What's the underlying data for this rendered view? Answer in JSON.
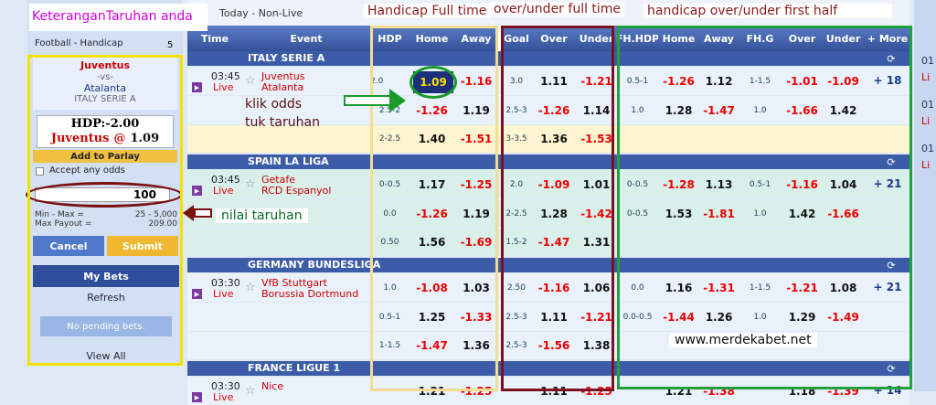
{
  "top_bar": {
    "title": "Today - Non-Live"
  },
  "annotations": {
    "betslip": "KeteranganTaruhan anda",
    "hdp_full": "Handicap Full time",
    "ou_full": "over/under full time",
    "fh": "handicap over/under first half",
    "click_1": "klik odds",
    "click_2": "tuk taruhan",
    "stake": "nilai taruhan",
    "site": "www.merdekabet.net"
  },
  "betslip": {
    "tab": "Football - Handicap",
    "count": "5",
    "home": "Juventus",
    "vs": "-vs-",
    "away": "Atalanta",
    "league": "ITALY SERIE A",
    "hdp": "HDP:-2.00",
    "pick": "Juventus",
    "at": "@",
    "odds": "1.09",
    "add_parlay": "Add to Parlay",
    "accept": "Accept any odds",
    "stake": "100",
    "min_max_label": "Min - Max =",
    "min_max": "25 - 5,000",
    "payout_label": "Max Payout =",
    "payout": "209.00",
    "cancel": "Cancel",
    "submit": "Submit",
    "my_bets": "My Bets",
    "refresh": "Refresh",
    "pending": "No pending bets.",
    "view_all": "View All"
  },
  "table": {
    "columns": [
      "Time",
      "Event",
      "HDP",
      "Home",
      "Away",
      "Goal",
      "Over",
      "Under",
      "FH.HDP",
      "Home",
      "Away",
      "FH.G",
      "Over",
      "Under",
      "+ More"
    ],
    "leagues": [
      {
        "name": "ITALY SERIE A",
        "match": {
          "time": "03:45",
          "live": "Live",
          "home": "Juventus",
          "away": "Atalanta",
          "more": "+ 18",
          "rows": [
            [
              "2.0",
              "1.09",
              "-1.16",
              "3.0",
              "1.11",
              "-1.21",
              "0.5-1",
              "-1.26",
              "1.12",
              "1-1.5",
              "-1.01",
              "-1.09"
            ],
            [
              "2.5-2",
              "-1.26",
              "1.19",
              "2.5-3",
              "-1.26",
              "1.14",
              "1.0",
              "1.28",
              "-1.47",
              "1.0",
              "-1.66",
              "1.42"
            ],
            [
              "2-2.5",
              "1.40",
              "-1.51",
              "3-3.5",
              "1.36",
              "-1.53",
              null,
              null,
              null,
              null,
              null,
              null
            ]
          ]
        }
      },
      {
        "name": "SPAIN LA LIGA",
        "match": {
          "time": "03:45",
          "live": "Live",
          "home": "Getafe",
          "away": "RCD Espanyol",
          "more": "+ 21",
          "rows": [
            [
              "0-0.5",
              "1.17",
              "-1.25",
              "2.0",
              "-1.09",
              "1.01",
              "0-0.5",
              "-1.28",
              "1.13",
              "0.5-1",
              "-1.16",
              "1.04"
            ],
            [
              "0.0",
              "-1.26",
              "1.19",
              "2-2.5",
              "1.28",
              "-1.42",
              "0-0.5",
              "1.53",
              "-1.81",
              "1.0",
              "1.42",
              "-1.66"
            ],
            [
              "0.50",
              "1.56",
              "-1.69",
              "1.5-2",
              "-1.47",
              "1.31",
              null,
              null,
              null,
              null,
              null,
              null
            ]
          ]
        }
      },
      {
        "name": "GERMANY BUNDESLIGA",
        "match": {
          "time": "03:30",
          "live": "Live",
          "home": "VfB Stuttgart",
          "away": "Borussia Dortmund",
          "more": "+ 21",
          "rows": [
            [
              "1.0",
              "-1.08",
              "1.03",
              "2.50",
              "-1.16",
              "1.06",
              "0.0",
              "1.16",
              "-1.31",
              "1-1.5",
              "-1.21",
              "1.08"
            ],
            [
              "0.5-1",
              "1.25",
              "-1.33",
              "2.5-3",
              "1.11",
              "-1.21",
              "0.0-0.5",
              "-1.44",
              "1.26",
              "1.0",
              "1.29",
              "-1.49"
            ],
            [
              "1-1.5",
              "-1.47",
              "1.36",
              "2.5-3",
              "-1.56",
              "1.38",
              null,
              null,
              null,
              null,
              null,
              null
            ]
          ]
        }
      },
      {
        "name": "FRANCE LIGUE 1",
        "match": {
          "time": "03:30",
          "live": "Live",
          "home": "Nice",
          "away": null,
          "more": "+ 14",
          "rows": [
            [
              null,
              "1.21",
              "-1.25",
              null,
              "1.11",
              "-1.25",
              null,
              "1.21",
              "-1.38",
              null,
              "1.18",
              "-1.39"
            ]
          ]
        }
      }
    ]
  },
  "right_panel": [
    "01",
    "Li",
    "01",
    "Li",
    "01",
    "Li"
  ]
}
